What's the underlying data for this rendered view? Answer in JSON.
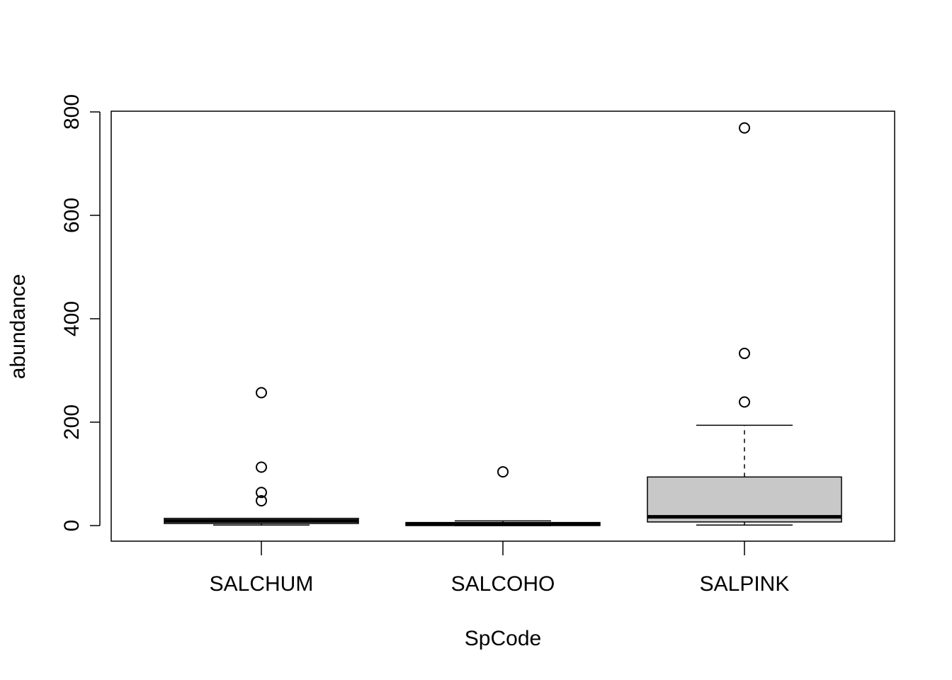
{
  "chart_data": {
    "type": "boxplot",
    "title": "",
    "xlabel": "SpCode",
    "ylabel": "abundance",
    "ylim": [
      -30,
      800
    ],
    "yticks": [
      0,
      200,
      400,
      600,
      800
    ],
    "categories": [
      "SALCHUM",
      "SALCOHO",
      "SALPINK"
    ],
    "boxes": [
      {
        "category": "SALCHUM",
        "whisker_low": 1,
        "q1": 4,
        "median": 9,
        "q3": 14,
        "whisker_high": 14,
        "outliers": [
          257,
          113,
          64,
          48
        ]
      },
      {
        "category": "SALCOHO",
        "whisker_low": 0,
        "q1": 0,
        "median": 3,
        "q3": 6,
        "whisker_high": 9,
        "outliers": [
          104
        ]
      },
      {
        "category": "SALPINK",
        "whisker_low": 1,
        "q1": 7,
        "median": 17,
        "q3": 94,
        "whisker_high": 194,
        "outliers": [
          769,
          333,
          239
        ]
      }
    ],
    "box_fill": "#c8c8c8",
    "grid": false,
    "legend": "none"
  }
}
